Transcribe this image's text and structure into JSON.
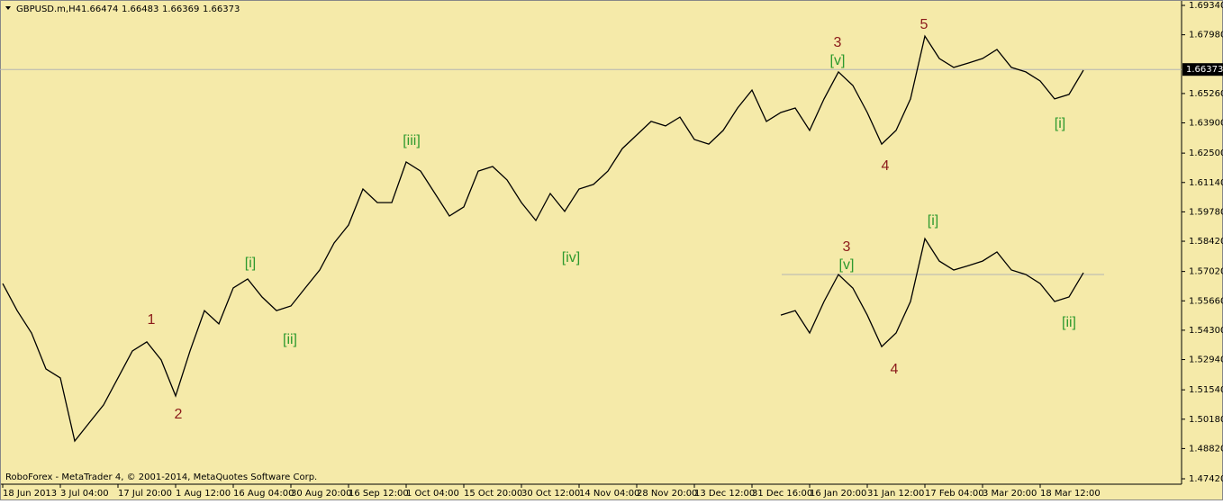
{
  "chart_data": {
    "type": "line",
    "title": "GBPUSD.m,H4",
    "ohlc": [
      1.66474,
      1.66483,
      1.66369,
      1.66373
    ],
    "footer": "RoboForex - MetaTrader 4, © 2001-2014, MetaQuotes Software Corp.",
    "background": "#f5eaa9",
    "categories": [
      "18 Jun 2013",
      null,
      null,
      null,
      "3 Jul 04:00",
      null,
      null,
      null,
      "17 Jul 20:00",
      null,
      null,
      null,
      "1 Aug 12:00",
      null,
      null,
      null,
      "16 Aug 04:00",
      null,
      null,
      null,
      "30 Aug 20:00",
      null,
      null,
      null,
      "16 Sep 12:00",
      null,
      null,
      null,
      "1 Oct 04:00",
      null,
      null,
      null,
      "15 Oct 20:00",
      null,
      null,
      null,
      "30 Oct 12:00",
      null,
      null,
      null,
      "14 Nov 04:00",
      null,
      null,
      null,
      "28 Nov 20:00",
      null,
      null,
      null,
      "13 Dec 12:00",
      null,
      null,
      null,
      "31 Dec 16:00",
      null,
      null,
      null,
      "16 Jan 20:00",
      null,
      null,
      null,
      "31 Jan 12:00",
      null,
      null,
      null,
      "17 Feb 04:00",
      null,
      null,
      null,
      "3 Mar 20:00",
      null,
      null,
      null,
      "18 Mar 12:00",
      null,
      null,
      null
    ],
    "series": [
      {
        "name": "GBPUSD.m,H4",
        "color": "#000000",
        "values": [
          1.5646,
          1.5521,
          1.5417,
          1.5251,
          1.5209,
          1.4917,
          1.5001,
          1.5084,
          1.5209,
          1.5334,
          1.5376,
          1.5292,
          1.5126,
          1.5334,
          1.5521,
          1.5459,
          1.5626,
          1.5667,
          1.5584,
          1.5521,
          1.5542,
          1.5626,
          1.5709,
          1.5834,
          1.5917,
          1.6084,
          1.6021,
          1.6021,
          1.6209,
          1.6167,
          1.6063,
          1.5959,
          1.6001,
          1.6167,
          1.6188,
          1.6126,
          1.6021,
          1.5938,
          1.6063,
          1.598,
          1.6084,
          1.6105,
          1.6167,
          1.6271,
          1.6334,
          1.6397,
          1.6376,
          1.6417,
          1.6313,
          1.6292,
          1.6355,
          1.6459,
          1.6542,
          1.6397,
          1.6438,
          1.6459,
          1.6355,
          1.6501,
          1.6626,
          1.6563,
          1.6438,
          1.6292,
          1.6355,
          1.6501,
          1.6792,
          1.6688,
          1.6647,
          1.6667,
          1.6688,
          1.673,
          1.6647,
          1.6626,
          1.6584,
          1.6501,
          1.6522,
          1.6634
        ]
      },
      {
        "color": "#000000",
        "values": [
          null,
          null,
          null,
          null,
          null,
          null,
          null,
          null,
          null,
          null,
          null,
          null,
          null,
          null,
          null,
          null,
          null,
          null,
          null,
          null,
          null,
          null,
          null,
          null,
          null,
          null,
          null,
          null,
          null,
          null,
          null,
          null,
          null,
          null,
          null,
          null,
          null,
          null,
          null,
          null,
          null,
          null,
          null,
          null,
          null,
          null,
          null,
          null,
          null,
          null,
          null,
          null,
          null,
          null,
          1.55,
          1.5521,
          1.5417,
          1.5563,
          1.5688,
          1.5625,
          1.55,
          1.5354,
          1.5417,
          1.5563,
          1.5854,
          1.575,
          1.5709,
          1.5729,
          1.575,
          1.5792,
          1.5709,
          1.5688,
          1.5646,
          1.5563,
          1.5584,
          1.5696
        ]
      }
    ],
    "price_line": 1.66373,
    "reference_line": 1.5688,
    "ylim": [
      1.4717,
      1.6959
    ],
    "yticks": [
      {
        "value": 1.6934,
        "label": "1.69340"
      },
      {
        "value": 1.6798,
        "label": "1.67980"
      },
      {
        "value": 1.6526,
        "label": "1.65260"
      },
      {
        "value": 1.639,
        "label": "1.63900"
      },
      {
        "value": 1.625,
        "label": "1.62500"
      },
      {
        "value": 1.6114,
        "label": "1.61140"
      },
      {
        "value": 1.5978,
        "label": "1.59780"
      },
      {
        "value": 1.5842,
        "label": "1.58420"
      },
      {
        "value": 1.5702,
        "label": "1.57020"
      },
      {
        "value": 1.5566,
        "label": "1.55660"
      },
      {
        "value": 1.543,
        "label": "1.54300"
      },
      {
        "value": 1.5294,
        "label": "1.52940"
      },
      {
        "value": 1.5154,
        "label": "1.51540"
      },
      {
        "value": 1.5018,
        "label": "1.50180"
      },
      {
        "value": 1.4882,
        "label": "1.48820"
      },
      {
        "value": 1.4742,
        "label": "1.47420"
      }
    ],
    "annotations": [
      {
        "text": "1",
        "color": "#8b1a1a"
      },
      {
        "text": "2",
        "color": "#8b1a1a"
      },
      {
        "text": "[i]",
        "color": "#2e9a2e"
      },
      {
        "text": "[ii]",
        "color": "#2e9a2e"
      },
      {
        "text": "[iii]",
        "color": "#2e9a2e"
      },
      {
        "text": "[iv]",
        "color": "#2e9a2e"
      },
      {
        "text": "3",
        "color": "#8b1a1a"
      },
      {
        "text": "[v]",
        "color": "#2e9a2e"
      },
      {
        "text": "4",
        "color": "#8b1a1a"
      },
      {
        "text": "5",
        "color": "#8b1a1a"
      },
      {
        "text": "[i]",
        "color": "#2e9a2e"
      },
      {
        "text": "3",
        "color": "#8b1a1a"
      },
      {
        "text": "[v]",
        "color": "#2e9a2e"
      },
      {
        "text": "[i]",
        "color": "#2e9a2e"
      },
      {
        "text": "4",
        "color": "#8b1a1a"
      },
      {
        "text": "[ii]",
        "color": "#2e9a2e"
      }
    ]
  }
}
